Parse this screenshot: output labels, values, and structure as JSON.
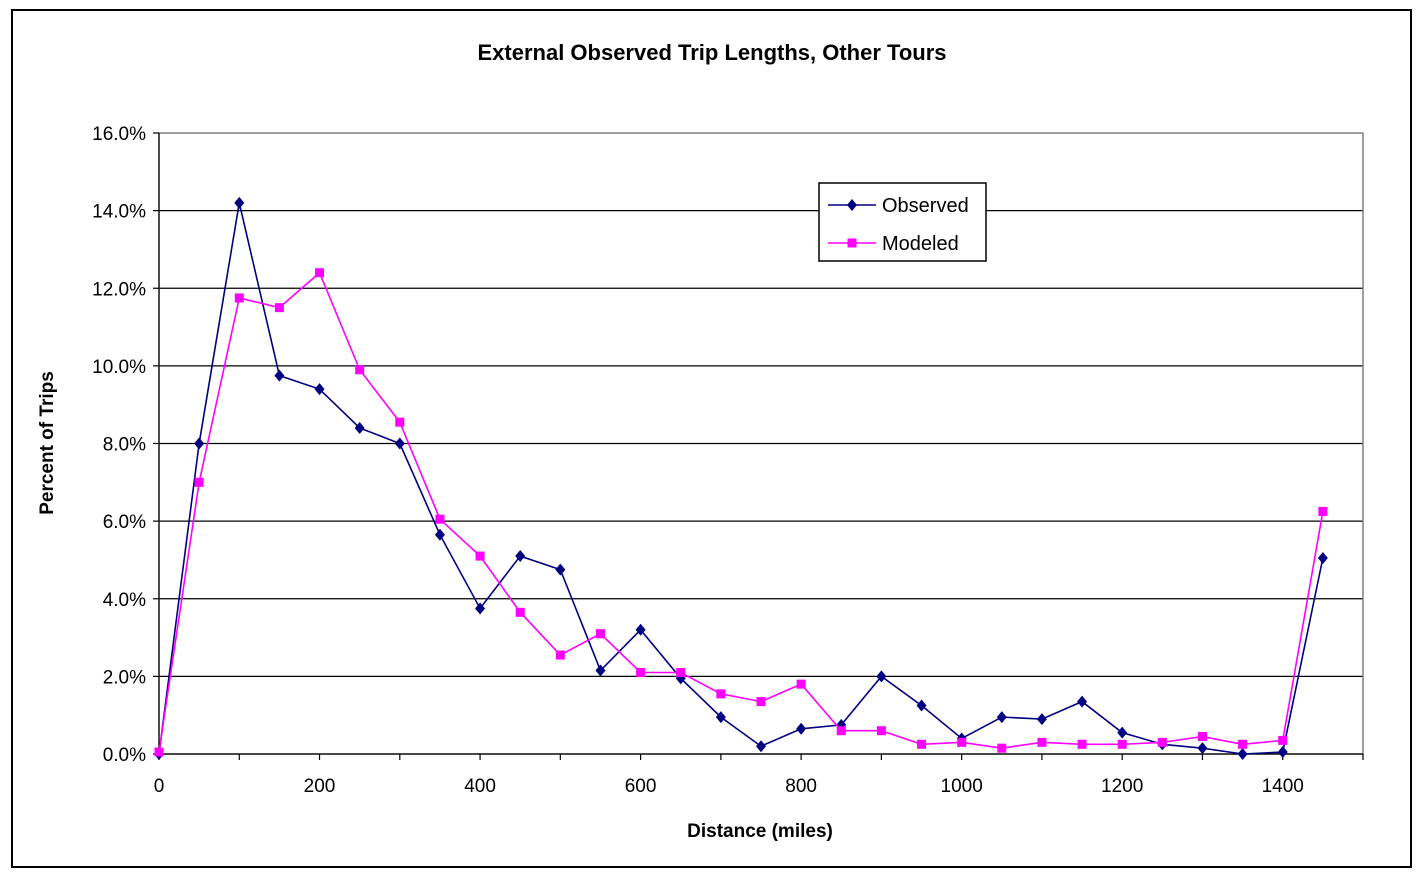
{
  "chart_data": {
    "type": "line",
    "title": "External Observed Trip Lengths, Other Tours",
    "xlabel": "Distance (miles)",
    "ylabel": "Percent of Trips",
    "xlim": [
      0,
      1500
    ],
    "ylim": [
      0,
      16
    ],
    "x_ticks": [
      "0",
      "200",
      "400",
      "600",
      "800",
      "1000",
      "1200",
      "1400"
    ],
    "y_ticks": [
      "0.0%",
      "2.0%",
      "4.0%",
      "6.0%",
      "8.0%",
      "10.0%",
      "12.0%",
      "14.0%",
      "16.0%"
    ],
    "grid": true,
    "legend_position": "top-center",
    "x": [
      0,
      50,
      100,
      150,
      200,
      250,
      300,
      350,
      400,
      450,
      500,
      550,
      600,
      650,
      700,
      750,
      800,
      850,
      900,
      950,
      1000,
      1050,
      1100,
      1150,
      1200,
      1250,
      1300,
      1350,
      1400,
      1450
    ],
    "series": [
      {
        "name": "Observed",
        "color": "#000080",
        "marker": "diamond",
        "values": [
          0.0,
          8.0,
          14.2,
          9.75,
          9.4,
          8.4,
          8.0,
          5.65,
          3.75,
          5.1,
          4.75,
          2.15,
          3.2,
          1.95,
          0.95,
          0.2,
          0.65,
          0.75,
          2.0,
          1.25,
          0.4,
          0.95,
          0.9,
          1.35,
          0.55,
          0.25,
          0.15,
          0.0,
          0.05,
          5.05
        ]
      },
      {
        "name": "Modeled",
        "color": "#ff00ff",
        "marker": "square",
        "values": [
          0.05,
          7.0,
          11.75,
          11.5,
          12.4,
          9.9,
          8.55,
          6.05,
          5.1,
          3.65,
          2.55,
          3.1,
          2.1,
          2.1,
          1.55,
          1.35,
          1.8,
          0.6,
          0.6,
          0.25,
          0.3,
          0.15,
          0.3,
          0.25,
          0.25,
          0.3,
          0.45,
          0.25,
          0.35,
          6.25
        ]
      }
    ]
  }
}
